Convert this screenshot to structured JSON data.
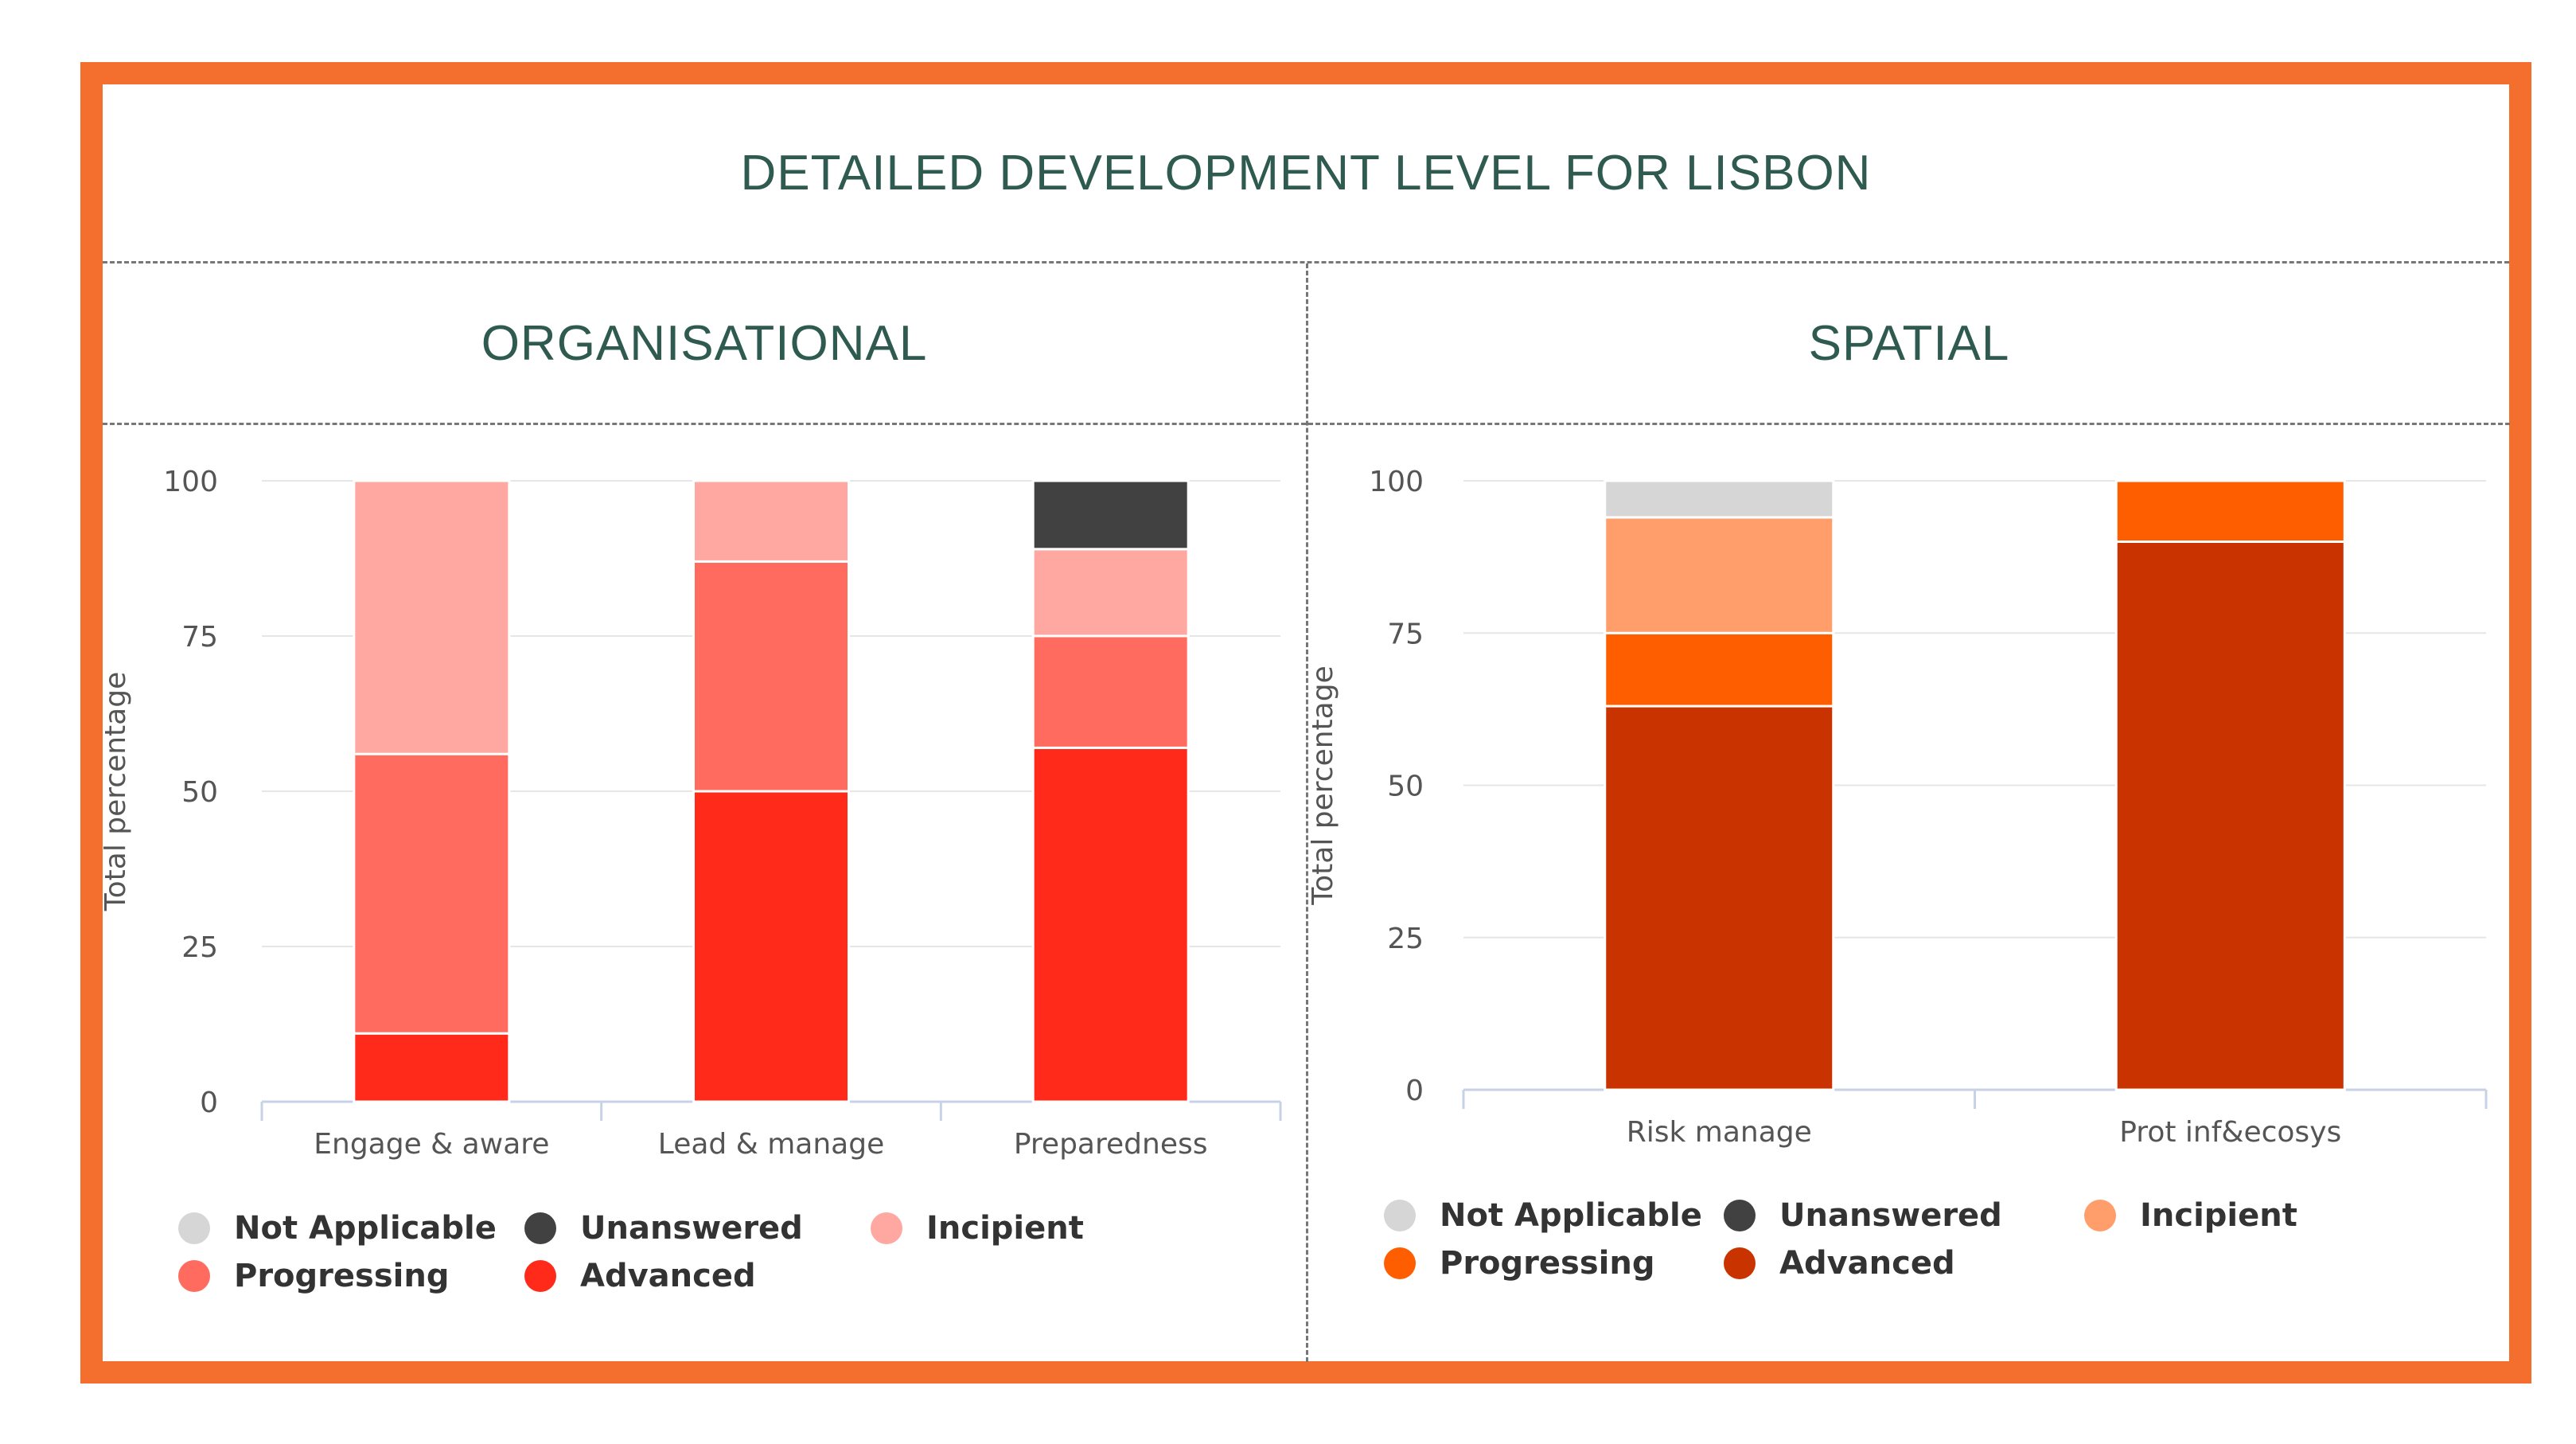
{
  "title": "DETAILED DEVELOPMENT LEVEL FOR LISBON",
  "legend_labels": [
    "Not Applicable",
    "Unanswered",
    "Incipient",
    "Progressing",
    "Advanced"
  ],
  "chart_data": [
    {
      "id": "organisational",
      "type": "bar",
      "stacked": true,
      "title": "ORGANISATIONAL",
      "ylabel": "Total percentage",
      "xlabel": "",
      "ylim": [
        0,
        100
      ],
      "yticks": [
        0,
        25,
        50,
        75,
        100
      ],
      "grid": true,
      "legend_position": "bottom",
      "categories": [
        "Engage & aware",
        "Lead & manage",
        "Preparedness"
      ],
      "series": [
        {
          "name": "Advanced",
          "color": "#ff2a1a",
          "values": [
            11,
            50,
            57
          ]
        },
        {
          "name": "Progressing",
          "color": "#ff6b5e",
          "values": [
            45,
            37,
            18
          ]
        },
        {
          "name": "Incipient",
          "color": "#ffa8a2",
          "values": [
            44,
            13,
            14
          ]
        },
        {
          "name": "Unanswered",
          "color": "#414141",
          "values": [
            0,
            0,
            11
          ]
        },
        {
          "name": "Not Applicable",
          "color": "#d6d6d6",
          "values": [
            0,
            0,
            0
          ]
        }
      ]
    },
    {
      "id": "spatial",
      "type": "bar",
      "stacked": true,
      "title": "SPATIAL",
      "ylabel": "Total percentage",
      "xlabel": "",
      "ylim": [
        0,
        100
      ],
      "yticks": [
        0,
        25,
        50,
        75,
        100
      ],
      "grid": true,
      "legend_position": "bottom",
      "categories": [
        "Risk manage",
        "Prot inf&ecosys"
      ],
      "series": [
        {
          "name": "Advanced",
          "color": "#c93300",
          "values": [
            63,
            90
          ]
        },
        {
          "name": "Progressing",
          "color": "#ff5e00",
          "values": [
            12,
            10
          ]
        },
        {
          "name": "Incipient",
          "color": "#ff9e6b",
          "values": [
            19,
            0
          ]
        },
        {
          "name": "Unanswered",
          "color": "#414141",
          "values": [
            0,
            0
          ]
        },
        {
          "name": "Not Applicable",
          "color": "#d6d6d6",
          "values": [
            6,
            0
          ]
        }
      ]
    }
  ]
}
